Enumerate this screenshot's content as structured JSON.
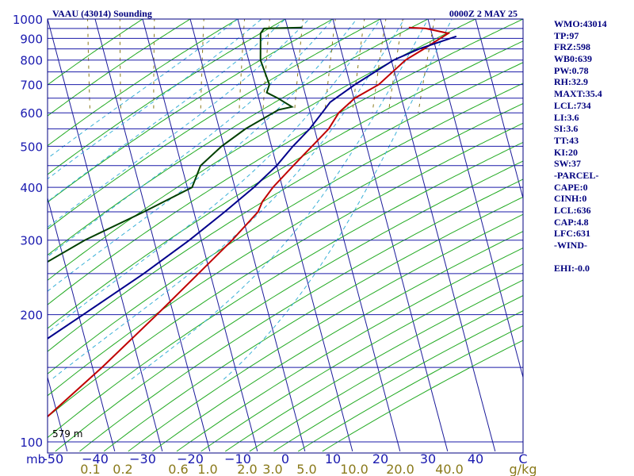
{
  "title_left": "VAAU (43014) Sounding",
  "title_right": "0000Z  2 MAY 25",
  "height_annotation": "579 m",
  "indices": [
    "WMO:43014",
    "TP:97",
    "FRZ:598",
    "WB0:639",
    "PW:0.78",
    "RH:32.9",
    "MAXT:35.4",
    "LCL:734",
    "LI:3.6",
    "SI:3.6",
    "TT:43",
    "KI:20",
    "SW:37",
    "-PARCEL-",
    "CAPE:0",
    "CINH:0",
    "LCL:636",
    "CAP:4.8",
    "LFC:631",
    "-WIND-",
    "",
    "EHI:-0.0"
  ],
  "chart_data": {
    "type": "line",
    "subtype": "skew-t log-p",
    "title": "VAAU (43014) Sounding",
    "pressure_unit_label": "mb",
    "mixing_ratio_unit_label": "g/kg",
    "pressure_range": [
      1000,
      100
    ],
    "pressure_scale": "log",
    "temperature_range": [
      -50,
      50
    ],
    "pressure_ticks": [
      100,
      200,
      300,
      400,
      500,
      600,
      700,
      800,
      900,
      1000
    ],
    "pressure_tick_labels": [
      "100",
      "200",
      "300",
      "400",
      "500",
      "600",
      "700",
      "800",
      "900",
      "1000"
    ],
    "isobars": [
      100,
      150,
      200,
      250,
      300,
      350,
      400,
      450,
      500,
      550,
      600,
      650,
      700,
      750,
      800,
      850,
      900,
      950,
      1000
    ],
    "temperature_ticks": [
      -50,
      -40,
      -30,
      -20,
      -10,
      0,
      10,
      20,
      30,
      40,
      50
    ],
    "temperature_tick_labels": [
      "-50",
      "−40",
      "−30",
      "−20",
      "−10",
      "0",
      "10",
      "20",
      "30",
      "40",
      "C"
    ],
    "mixing_ratio_labels": [
      "0.1",
      "0.2",
      "0.6",
      "1.0",
      "2.0",
      "3.0",
      "5.0",
      "10.0",
      "20.0",
      "40.0"
    ],
    "isotherms": [
      -160,
      -150,
      -140,
      -130,
      -120,
      -110,
      -100,
      -90,
      -80,
      -70,
      -60,
      -50,
      -40,
      -30,
      -20,
      -10,
      0,
      10,
      20,
      30,
      40,
      50
    ],
    "dry_adiabats_theta_c": [
      -30,
      -20,
      -10,
      0,
      10,
      20,
      30,
      40,
      50,
      60,
      70,
      80,
      90,
      100,
      110,
      120,
      130,
      140,
      150,
      160,
      170,
      180,
      190,
      200,
      210,
      220,
      230
    ],
    "moist_adiabats_thetaw_c": [
      -10,
      -5,
      0,
      5,
      10,
      15,
      20,
      25,
      30,
      35
    ],
    "mixing_ratio_lines_gkg": [
      0.1,
      0.2,
      0.4,
      1,
      2,
      3,
      5,
      8,
      12,
      16,
      20,
      30
    ],
    "series": [
      {
        "name": "Temperature",
        "color": "#c00000",
        "points": [
          {
            "p": 955,
            "t": 25.5
          },
          {
            "p": 950,
            "t": 29.0
          },
          {
            "p": 925,
            "t": 33.5
          },
          {
            "p": 900,
            "t": 31.5
          },
          {
            "p": 850,
            "t": 27.5
          },
          {
            "p": 800,
            "t": 23.0
          },
          {
            "p": 700,
            "t": 16.0
          },
          {
            "p": 650,
            "t": 10.2
          },
          {
            "p": 600,
            "t": 6.0
          },
          {
            "p": 550,
            "t": 3.0
          },
          {
            "p": 500,
            "t": -1.5
          },
          {
            "p": 450,
            "t": -6.5
          },
          {
            "p": 400,
            "t": -12.0
          },
          {
            "p": 370,
            "t": -15.0
          },
          {
            "p": 350,
            "t": -16.5
          },
          {
            "p": 300,
            "t": -23.5
          },
          {
            "p": 250,
            "t": -32.5
          },
          {
            "p": 200,
            "t": -43.5
          },
          {
            "p": 150,
            "t": -58.0
          },
          {
            "p": 100,
            "t": -79.5
          }
        ]
      },
      {
        "name": "Dewpoint",
        "color": "#004000",
        "points": [
          {
            "p": 955,
            "t": 3.0
          },
          {
            "p": 950,
            "t": -5.0
          },
          {
            "p": 925,
            "t": -6.0
          },
          {
            "p": 800,
            "t": -7.5
          },
          {
            "p": 700,
            "t": -7.0
          },
          {
            "p": 670,
            "t": -8.0
          },
          {
            "p": 650,
            "t": -6.0
          },
          {
            "p": 620,
            "t": -3.5
          },
          {
            "p": 610,
            "t": -6.5
          },
          {
            "p": 550,
            "t": -14.5
          },
          {
            "p": 500,
            "t": -20.5
          },
          {
            "p": 450,
            "t": -26.0
          },
          {
            "p": 400,
            "t": -29.0
          },
          {
            "p": 350,
            "t": -40.5
          },
          {
            "p": 300,
            "t": -54.5
          },
          {
            "p": 250,
            "t": -68.5
          },
          {
            "p": 200,
            "t": -79.5
          },
          {
            "p": 150,
            "t": -91.0
          },
          {
            "p": 100,
            "t": -103.0
          }
        ]
      },
      {
        "name": "Parcel",
        "color": "#00008b",
        "points": [
          {
            "p": 910,
            "t": 35.0
          },
          {
            "p": 850,
            "t": 26.5
          },
          {
            "p": 800,
            "t": 20.5
          },
          {
            "p": 700,
            "t": 11.0
          },
          {
            "p": 636,
            "t": 4.8
          },
          {
            "p": 600,
            "t": 2.5
          },
          {
            "p": 550,
            "t": -1.0
          },
          {
            "p": 500,
            "t": -5.5
          },
          {
            "p": 450,
            "t": -10.0
          },
          {
            "p": 400,
            "t": -16.0
          },
          {
            "p": 350,
            "t": -23.5
          },
          {
            "p": 300,
            "t": -32.5
          },
          {
            "p": 250,
            "t": -44.0
          },
          {
            "p": 200,
            "t": -59.0
          },
          {
            "p": 150,
            "t": -78.5
          },
          {
            "p": 120,
            "t": -95.0
          }
        ]
      }
    ]
  }
}
